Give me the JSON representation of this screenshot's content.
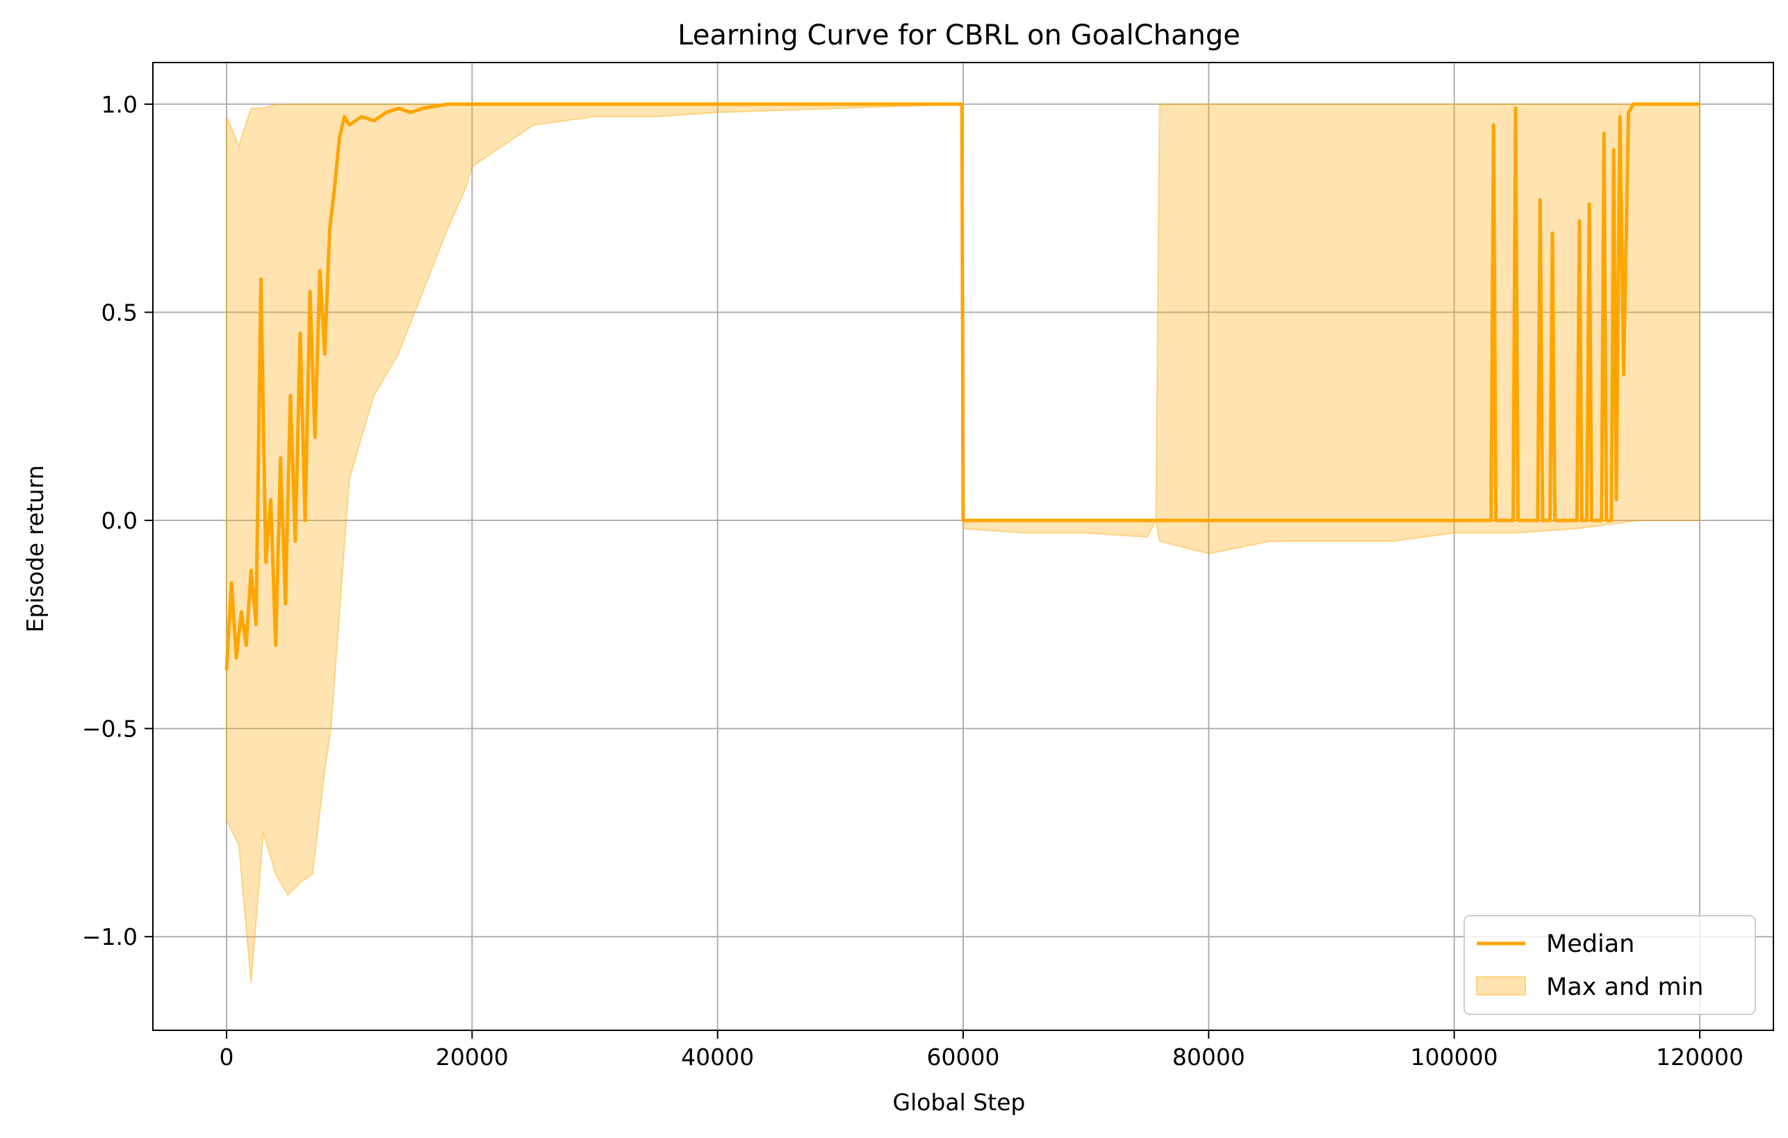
{
  "chart_data": {
    "type": "line",
    "title": "Learning Curve for CBRL on GoalChange",
    "xlabel": "Global Step",
    "ylabel": "Episode return",
    "xlim": [
      -6000,
      126000
    ],
    "ylim": [
      -1.225,
      1.1
    ],
    "xticks": [
      0,
      20000,
      40000,
      60000,
      80000,
      100000,
      120000
    ],
    "xtick_labels": [
      "0",
      "20000",
      "40000",
      "60000",
      "80000",
      "100000",
      "120000"
    ],
    "yticks": [
      -1.0,
      -0.5,
      0.0,
      0.5,
      1.0
    ],
    "ytick_labels": [
      "−1.0",
      "−0.5",
      "0.0",
      "0.5",
      "1.0"
    ],
    "grid": true,
    "legend_position": "lower-right",
    "colors": {
      "median": "#ffa500",
      "band": "#ffa500"
    },
    "series": [
      {
        "name": "Median",
        "kind": "line",
        "x": [
          0,
          400,
          800,
          1200,
          1600,
          2000,
          2400,
          2800,
          3200,
          3600,
          4000,
          4400,
          4800,
          5200,
          5600,
          6000,
          6400,
          6800,
          7200,
          7600,
          8000,
          8400,
          8800,
          9200,
          9600,
          10000,
          11000,
          12000,
          13000,
          14000,
          15000,
          16000,
          18000,
          20000,
          25000,
          30000,
          40000,
          50000,
          59900,
          60000,
          60100,
          70000,
          80000,
          90000,
          103000,
          103200,
          103400,
          103600,
          104000,
          104800,
          105000,
          105200,
          106800,
          107000,
          107200,
          107800,
          108000,
          108200,
          110000,
          110200,
          110400,
          110800,
          111000,
          111200,
          112000,
          112200,
          112400,
          112800,
          113000,
          113200,
          113500,
          113800,
          114200,
          114600,
          115000,
          120000
        ],
        "y": [
          -0.36,
          -0.15,
          -0.33,
          -0.22,
          -0.3,
          -0.12,
          -0.25,
          0.58,
          -0.1,
          0.05,
          -0.3,
          0.15,
          -0.2,
          0.3,
          -0.05,
          0.45,
          0.0,
          0.55,
          0.2,
          0.6,
          0.4,
          0.7,
          0.8,
          0.92,
          0.97,
          0.95,
          0.97,
          0.96,
          0.98,
          0.99,
          0.98,
          0.99,
          1.0,
          1.0,
          1.0,
          1.0,
          1.0,
          1.0,
          1.0,
          0.0,
          0.0,
          0.0,
          0.0,
          0.0,
          0.0,
          0.95,
          0.0,
          0.0,
          0.0,
          0.0,
          0.99,
          0.0,
          0.0,
          0.77,
          0.0,
          0.0,
          0.69,
          0.0,
          0.0,
          0.72,
          0.0,
          0.0,
          0.76,
          0.0,
          0.0,
          0.93,
          0.0,
          0.0,
          0.89,
          0.05,
          0.97,
          0.35,
          0.98,
          1.0,
          1.0,
          1.0
        ]
      },
      {
        "name": "Max and min",
        "kind": "band",
        "x": [
          0,
          1000,
          2000,
          3000,
          4000,
          5000,
          6000,
          7000,
          8000,
          8500,
          9000,
          10000,
          12000,
          14000,
          16000,
          18000,
          19500,
          20000,
          25000,
          30000,
          35000,
          40000,
          50000,
          59900,
          60000,
          65000,
          70000,
          75000,
          75700,
          76000,
          80000,
          85000,
          90000,
          95000,
          100000,
          105000,
          110000,
          115000,
          120000
        ],
        "upper": [
          0.97,
          0.9,
          0.99,
          0.99,
          1.0,
          1.0,
          1.0,
          1.0,
          1.0,
          1.0,
          1.0,
          1.0,
          1.0,
          1.0,
          1.0,
          1.0,
          1.0,
          1.0,
          1.0,
          1.0,
          1.0,
          1.0,
          1.0,
          1.0,
          0.0,
          0.0,
          0.0,
          0.0,
          0.0,
          1.0,
          1.0,
          1.0,
          1.0,
          1.0,
          1.0,
          1.0,
          1.0,
          1.0,
          1.0
        ],
        "lower": [
          -0.72,
          -0.78,
          -1.11,
          -0.75,
          -0.85,
          -0.9,
          -0.87,
          -0.85,
          -0.6,
          -0.5,
          -0.3,
          0.1,
          0.3,
          0.4,
          0.55,
          0.7,
          0.8,
          0.85,
          0.95,
          0.97,
          0.97,
          0.98,
          0.99,
          1.0,
          -0.02,
          -0.03,
          -0.03,
          -0.04,
          0.0,
          -0.05,
          -0.08,
          -0.05,
          -0.05,
          -0.05,
          -0.03,
          -0.03,
          -0.02,
          0.0,
          0.0
        ]
      }
    ]
  },
  "legend": {
    "items": [
      {
        "label": "Median",
        "kind": "line"
      },
      {
        "label": "Max and min",
        "kind": "band"
      }
    ]
  }
}
